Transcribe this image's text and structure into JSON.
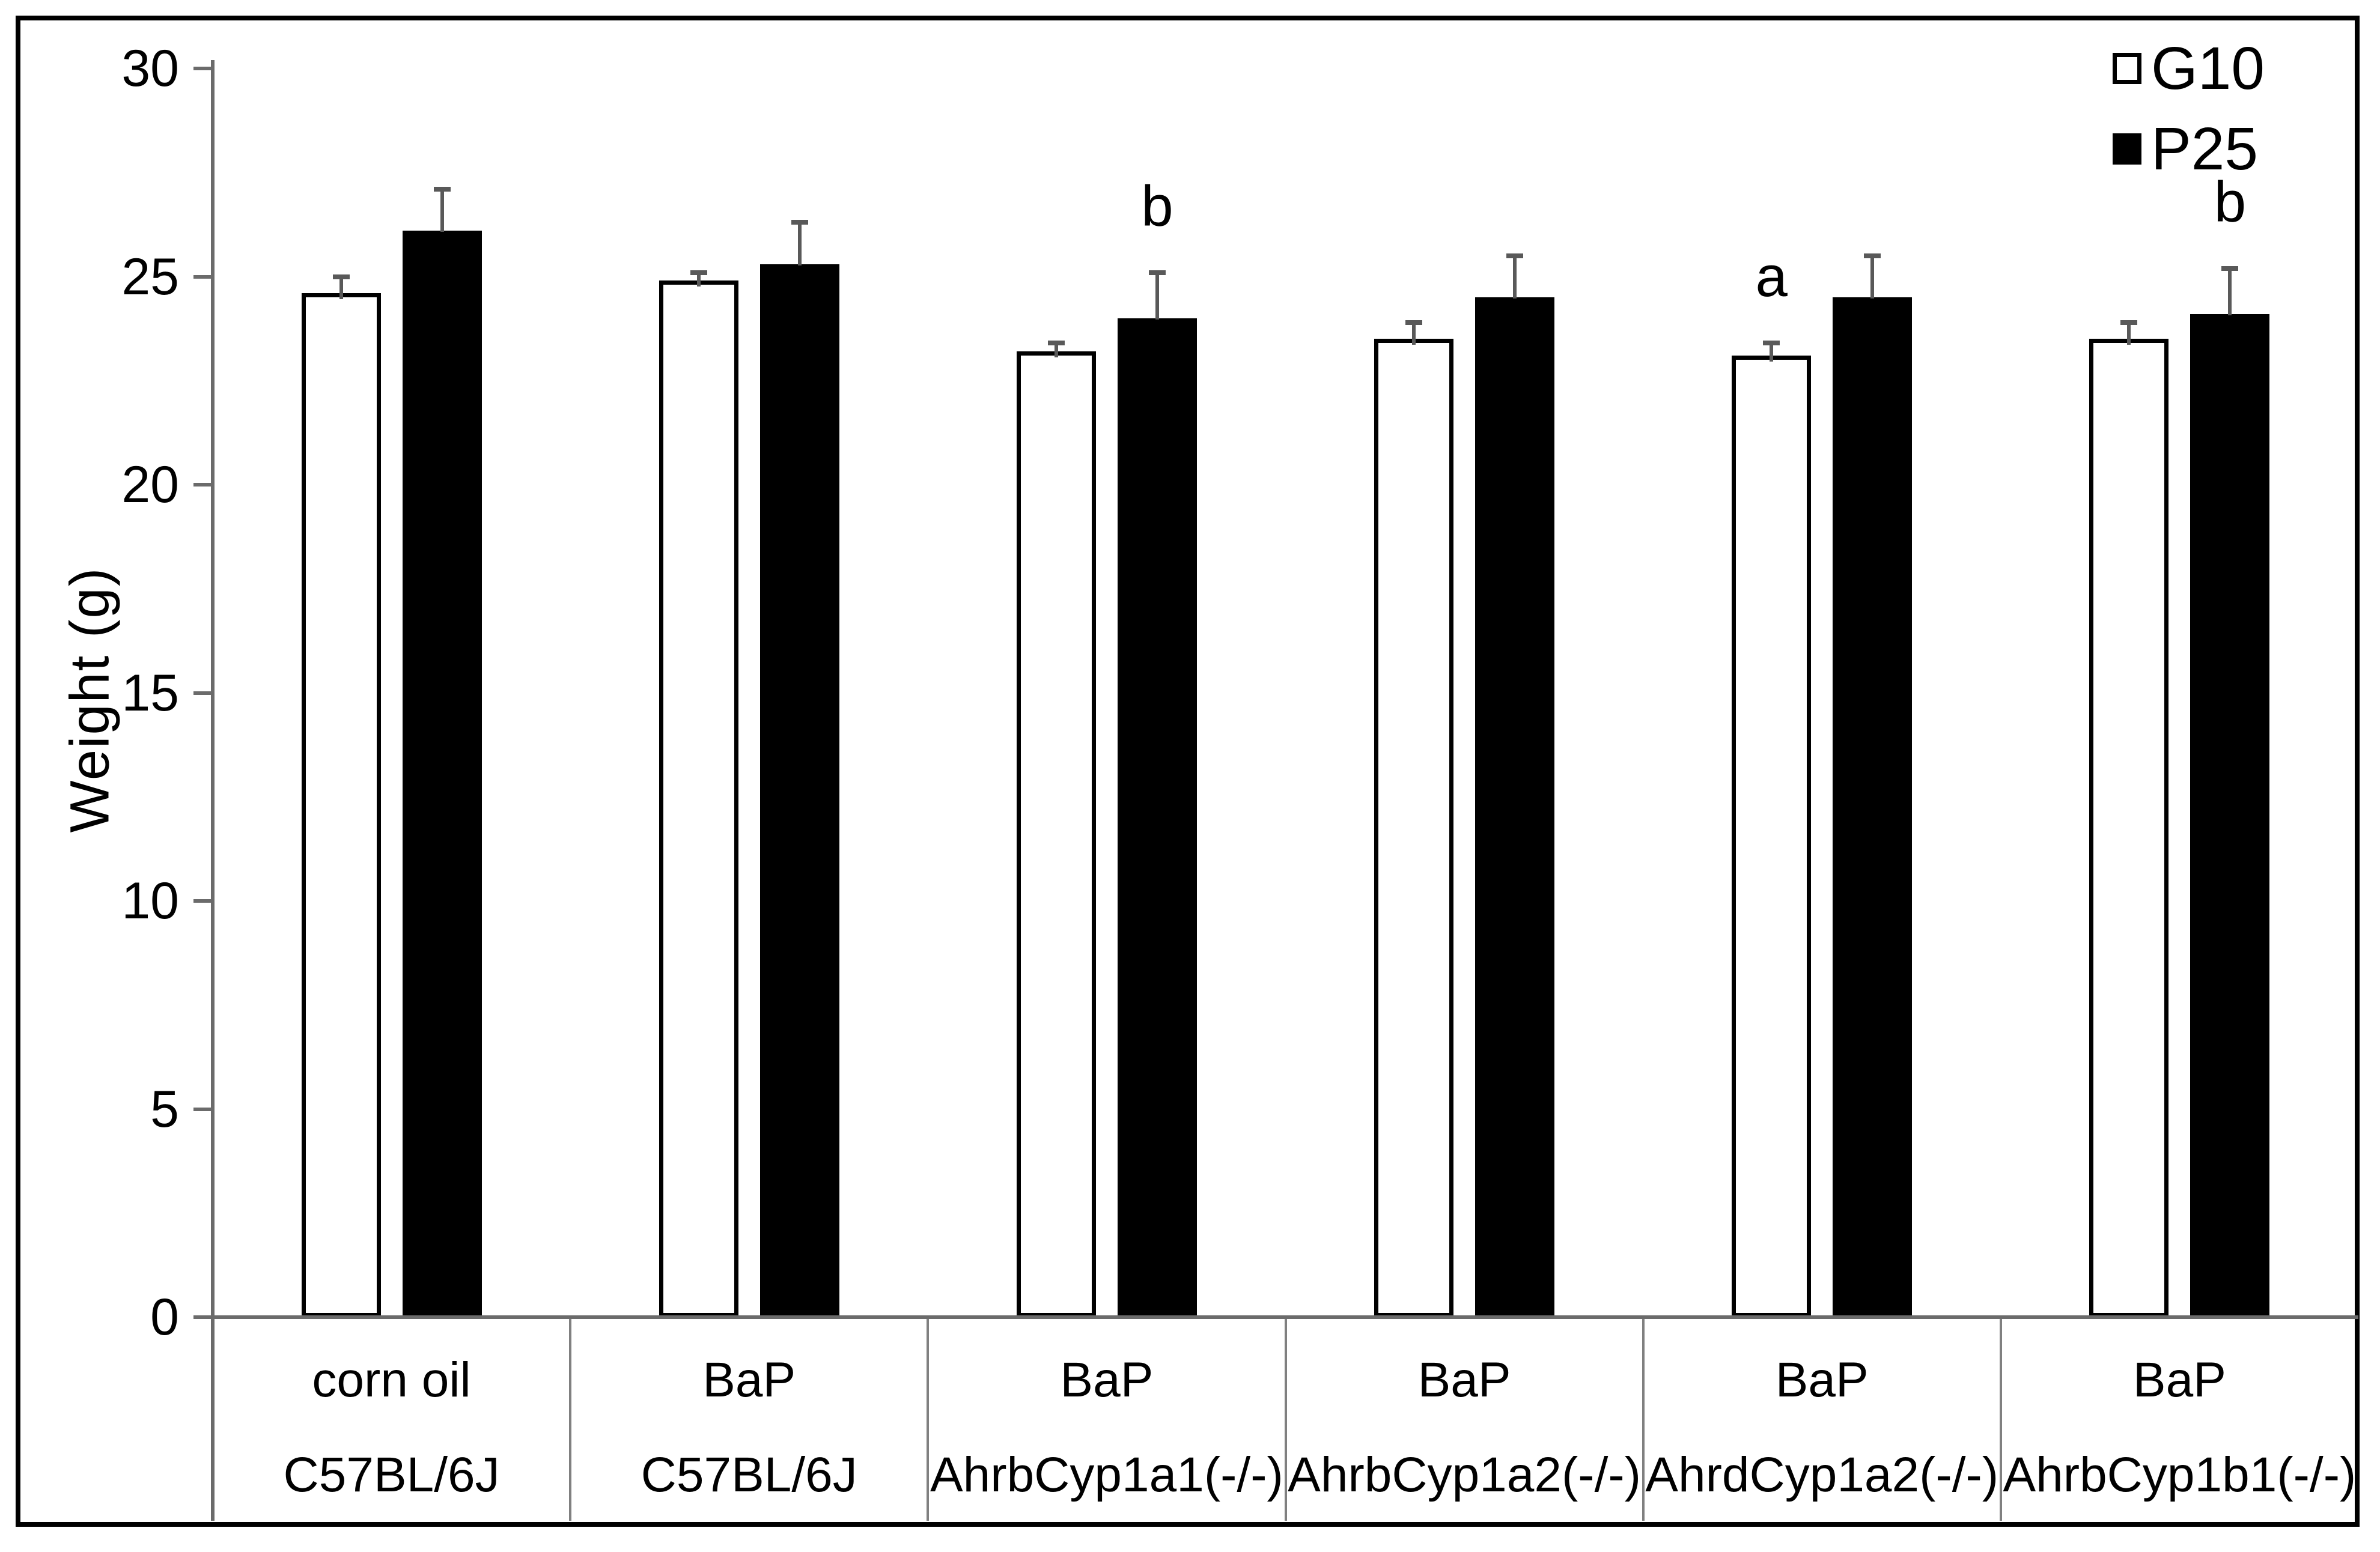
{
  "figure": {
    "y_axis_title": "Weight (g)",
    "border_color": "#000000",
    "axis_color": "#6b6b6b",
    "error_bar_color": "#595959",
    "divider_color": "#808080",
    "background": "#ffffff"
  },
  "legend": {
    "items": [
      {
        "label": "G10",
        "fill": "#ffffff"
      },
      {
        "label": "P25",
        "fill": "#000000"
      }
    ],
    "position": "top-right"
  },
  "chart_data": {
    "type": "bar",
    "title": "",
    "xlabel": "",
    "ylabel": "Weight (g)",
    "ylim": [
      0,
      30
    ],
    "yticks": [
      0,
      5,
      10,
      15,
      20,
      25,
      30
    ],
    "grid": false,
    "legend_position": "top-right",
    "categories": [
      {
        "treatment": "corn oil",
        "strain": "C57BL/6J"
      },
      {
        "treatment": "BaP",
        "strain": "C57BL/6J"
      },
      {
        "treatment": "BaP",
        "strain": "AhrbCyp1a1(-/-)"
      },
      {
        "treatment": "BaP",
        "strain": "AhrbCyp1a2(-/-)"
      },
      {
        "treatment": "BaP",
        "strain": "AhrdCyp1a2(-/-)"
      },
      {
        "treatment": "BaP",
        "strain": "AhrbCyp1b1(-/-)"
      }
    ],
    "series": [
      {
        "name": "G10",
        "fill": "#ffffff",
        "outline": "#000000",
        "values": [
          24.6,
          24.9,
          23.2,
          23.5,
          23.1,
          23.5
        ],
        "errors": [
          0.4,
          0.2,
          0.2,
          0.4,
          0.3,
          0.4
        ],
        "annotations": [
          "",
          "",
          "",
          "",
          "a",
          ""
        ]
      },
      {
        "name": "P25",
        "fill": "#000000",
        "outline": "#000000",
        "values": [
          26.1,
          25.3,
          24.0,
          24.5,
          24.5,
          24.1
        ],
        "errors": [
          1.0,
          1.0,
          1.1,
          1.0,
          1.0,
          1.1
        ],
        "annotations": [
          "",
          "",
          "b",
          "",
          "",
          "b"
        ]
      }
    ]
  }
}
